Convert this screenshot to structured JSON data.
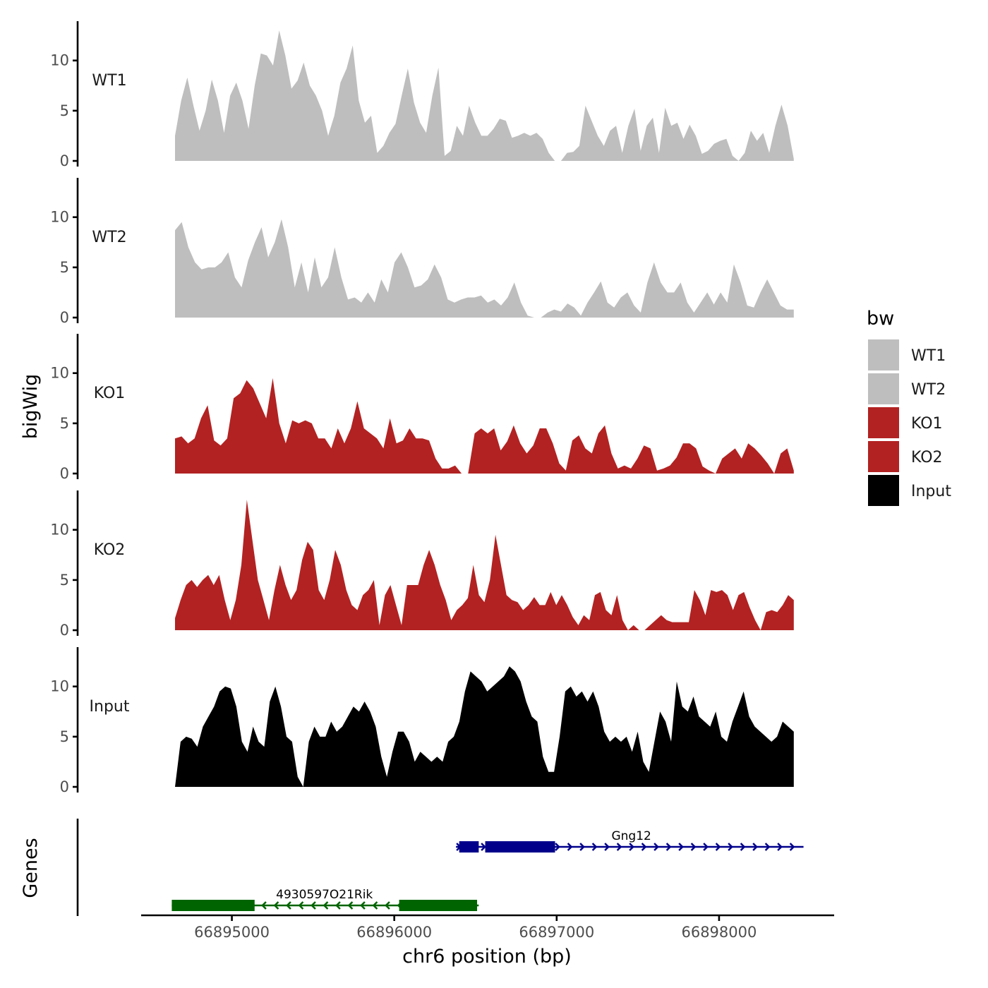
{
  "chart_data": {
    "type": "area",
    "title": "",
    "xlabel": "chr6 position (bp)",
    "ylabel": "bigWig",
    "genes_label": "Genes",
    "xlim": [
      66894450,
      66898700
    ],
    "x_ticks": [
      66895000,
      66896000,
      66897000,
      66898000
    ],
    "x_tick_labels": [
      "66895000",
      "66896000",
      "66897000",
      "66898000"
    ],
    "ylim": [
      0,
      13.5
    ],
    "y_ticks": [
      0,
      5,
      10
    ],
    "y_tick_labels": [
      "0",
      "5",
      "10"
    ],
    "x_start": 66894650,
    "x_end": 66898460,
    "legend": {
      "title": "bw",
      "entries": [
        {
          "label": "WT1",
          "color": "#bebebe"
        },
        {
          "label": "WT2",
          "color": "#bebebe"
        },
        {
          "label": "KO1",
          "color": "#b22222"
        },
        {
          "label": "KO2",
          "color": "#b22222"
        },
        {
          "label": "Input",
          "color": "#000000"
        }
      ]
    },
    "series": [
      {
        "name": "WT1",
        "color": "#bebebe",
        "values": [
          2.5,
          6,
          8.3,
          5.5,
          3,
          5,
          8.1,
          6,
          2.8,
          6.5,
          7.8,
          6,
          3.2,
          7.5,
          10.7,
          10.5,
          9.5,
          13,
          10.5,
          7.2,
          8,
          9.8,
          7.5,
          6.5,
          5,
          2.5,
          4.5,
          7.8,
          9.2,
          11.5,
          6,
          3.8,
          4.5,
          0.8,
          1.5,
          2.8,
          3.7,
          6.5,
          9.2,
          5.8,
          3.8,
          2.8,
          6.5,
          9.3,
          0.5,
          1,
          3.5,
          2.5,
          5.5,
          3.8,
          2.5,
          2.5,
          3.2,
          4.2,
          4,
          2.3,
          2.5,
          2.8,
          2.5,
          2.8,
          2.2,
          0.8,
          0,
          0,
          0.8,
          0.9,
          1.5,
          5.5,
          4,
          2.5,
          1.5,
          3,
          3.5,
          0.8,
          3.5,
          5.2,
          1,
          3.5,
          4.3,
          0.8,
          5.3,
          3.5,
          3.8,
          2.2,
          3.6,
          2.5,
          0.7,
          1,
          1.7,
          2,
          2.2,
          0.5,
          0,
          0.8,
          3,
          2,
          2.8,
          0.8,
          3.5,
          5.6,
          3.5,
          0.2
        ]
      },
      {
        "name": "WT2",
        "color": "#bebebe",
        "values": [
          8.7,
          9.5,
          7,
          5.5,
          4.8,
          5,
          5,
          5.5,
          6.5,
          4,
          3,
          5.7,
          7.5,
          9,
          6,
          7.5,
          9.8,
          7,
          3,
          5.5,
          2.5,
          6,
          3,
          4,
          7,
          4,
          1.8,
          2,
          1.5,
          2.5,
          1.5,
          3.8,
          2.5,
          5.5,
          6.5,
          5,
          3,
          3.2,
          3.8,
          5.3,
          4,
          1.8,
          1.5,
          1.8,
          2,
          2,
          2.2,
          1.5,
          1.8,
          1.2,
          2,
          3.5,
          1.5,
          0.2,
          0,
          0,
          0.5,
          0.8,
          0.6,
          1.4,
          1,
          0.2,
          1.5,
          2.5,
          3.6,
          1.5,
          1,
          2,
          2.5,
          1.2,
          0.5,
          3.5,
          5.5,
          3.5,
          2.5,
          2.5,
          3.5,
          1.5,
          0.5,
          1.5,
          2.5,
          1.3,
          2.5,
          1.5,
          5.3,
          3.5,
          1.2,
          1,
          2.5,
          3.8,
          2.5,
          1.2,
          0.8,
          0.8
        ]
      },
      {
        "name": "KO1",
        "color": "#b22222",
        "values": [
          3.5,
          3.7,
          3,
          3.5,
          5.5,
          6.8,
          3.3,
          2.8,
          3.5,
          7.5,
          8,
          9.3,
          8.5,
          7,
          5.5,
          9.5,
          5,
          3,
          5.3,
          5,
          5.3,
          5,
          3.5,
          3.5,
          2.5,
          4.5,
          3,
          4.5,
          7.2,
          4.5,
          4,
          3.5,
          2.5,
          5.5,
          3,
          3.3,
          4.5,
          3.5,
          3.5,
          3.3,
          1.5,
          0.5,
          0.5,
          0.8,
          0,
          0,
          4,
          4.5,
          4,
          4.5,
          2.3,
          3.2,
          4.8,
          3,
          2,
          2.8,
          4.5,
          4.5,
          3,
          1,
          0.3,
          3.3,
          3.8,
          2.5,
          2,
          4,
          4.8,
          2,
          0.5,
          0.8,
          0.5,
          1.5,
          2.8,
          2.5,
          0.3,
          0.5,
          0.8,
          1.6,
          3,
          3,
          2.5,
          0.7,
          0.3,
          0,
          1.5,
          2,
          2.5,
          1.5,
          3,
          2.5,
          1.8,
          1,
          0,
          2,
          2.5,
          0.3
        ]
      },
      {
        "name": "KO2",
        "color": "#b22222",
        "values": [
          1.2,
          3,
          4.5,
          5,
          4.3,
          5,
          5.5,
          4.5,
          5.5,
          3,
          1,
          3,
          6.5,
          13,
          9,
          5,
          3,
          1,
          4,
          6.5,
          4.5,
          3,
          4,
          7,
          8.8,
          8,
          4,
          3,
          5,
          8,
          6.5,
          4,
          2.5,
          2,
          3.5,
          4,
          5,
          0.5,
          3.5,
          4.5,
          2.5,
          0.5,
          4.5,
          4.5,
          4.5,
          6.5,
          8,
          6.5,
          4.5,
          3,
          1,
          2,
          2.5,
          3.2,
          6.5,
          3.5,
          2.8,
          5,
          9.5,
          6.5,
          3.5,
          3,
          2.8,
          2,
          2.5,
          3.3,
          2.5,
          2.5,
          3.8,
          2.5,
          3.5,
          2.5,
          1.3,
          0.5,
          1.5,
          1,
          3.5,
          3.8,
          2,
          1.5,
          3.5,
          1,
          0,
          0.5,
          0,
          0,
          0.5,
          1,
          1.5,
          1,
          0.8,
          0.8,
          0.8,
          0.8,
          4,
          3,
          1.5,
          4,
          3.8,
          4,
          3.5,
          2,
          3.5,
          3.8,
          2.3,
          1,
          0,
          1.8,
          2,
          1.8,
          2.5,
          3.5,
          3
        ]
      },
      {
        "name": "Input",
        "color": "#000000",
        "values": [
          0,
          4.5,
          5,
          4.8,
          4,
          6,
          7,
          8,
          9.5,
          10,
          9.8,
          8,
          4.5,
          3.5,
          6,
          4.5,
          4,
          8.5,
          10,
          8,
          5,
          4.5,
          1,
          0,
          4.5,
          6,
          5,
          5,
          6.5,
          5.5,
          6,
          7,
          8,
          7.5,
          8.5,
          7.5,
          6,
          3,
          1,
          3.5,
          5.5,
          5.5,
          4.5,
          2.5,
          3.5,
          3,
          2.5,
          3,
          2.5,
          4.5,
          5,
          6.5,
          9.5,
          11.5,
          11,
          10.5,
          9.5,
          10,
          10.5,
          11,
          12,
          11.5,
          10.5,
          8.5,
          7,
          6.5,
          3,
          1.5,
          1.5,
          5,
          9.5,
          10,
          9,
          9.5,
          8.5,
          9.5,
          8,
          5.5,
          4.5,
          5,
          4.5,
          5,
          3.5,
          5.5,
          2.5,
          1.5,
          4.5,
          7.5,
          6.5,
          4.5,
          10.5,
          8,
          7.5,
          9,
          7,
          6.5,
          6,
          7.5,
          5,
          4.5,
          6.5,
          8,
          9.5,
          7,
          6,
          5.5,
          5,
          4.5,
          5,
          6.5,
          6,
          5.5
        ]
      }
    ],
    "genes": [
      {
        "name": "Gng12",
        "strand": "+",
        "color": "#00008b",
        "start": 66896380,
        "end": 66898520,
        "exons": [
          [
            66896400,
            66896520
          ],
          [
            66896560,
            66896990
          ]
        ]
      },
      {
        "name": "4930597O21Rik",
        "strand": "-",
        "color": "#006400",
        "start": 66894630,
        "end": 66896520,
        "exons": [
          [
            66894630,
            66895140
          ],
          [
            66896030,
            66896510
          ]
        ]
      }
    ]
  }
}
